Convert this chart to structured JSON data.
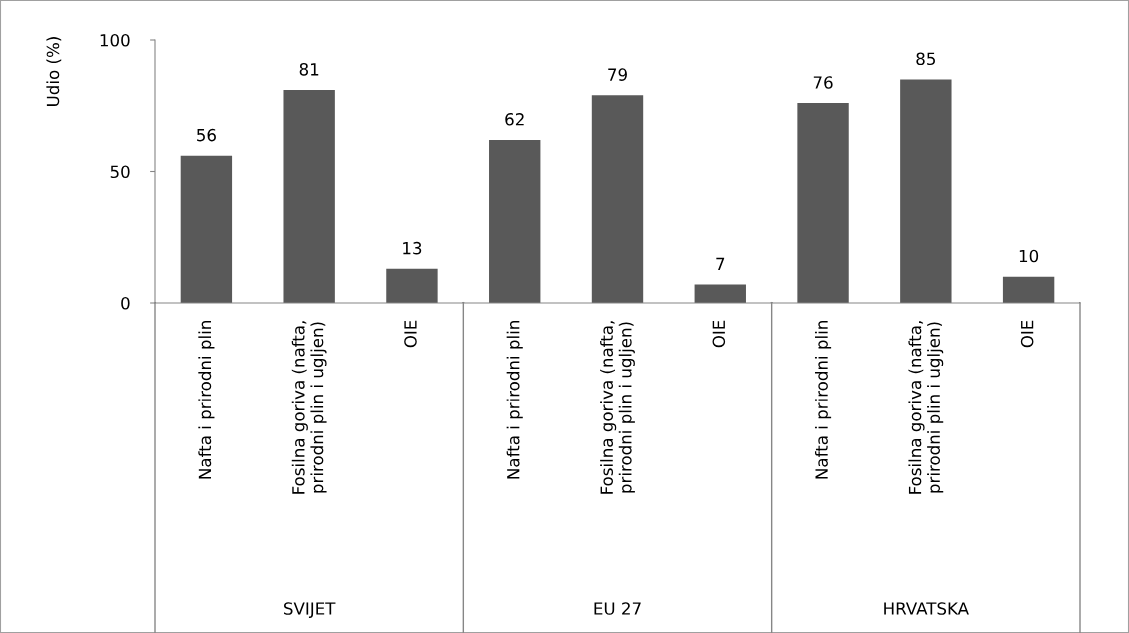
{
  "chart_data": {
    "type": "bar",
    "ylabel": "Udio (%)",
    "categories": [
      "Nafta i prirodni plin",
      "Fosilna goriva (nafta, prirodni plin i ugljen)",
      "OIE",
      "Nafta i prirodni plin",
      "Fosilna goriva (nafta, prirodni plin i ugljen)",
      "OIE",
      "Nafta i prirodni plin",
      "Fosilna goriva (nafta, prirodni plin i ugljen)",
      "OIE"
    ],
    "values": [
      56,
      81,
      13,
      62,
      79,
      7,
      76,
      85,
      10
    ],
    "color": "#595959",
    "ylim": [
      0,
      100
    ],
    "yticks": [
      0,
      50,
      100
    ],
    "grid": false,
    "data_labels": true,
    "annotations": [
      "SVIJET",
      "EU 27",
      "HRVATSKA"
    ]
  }
}
